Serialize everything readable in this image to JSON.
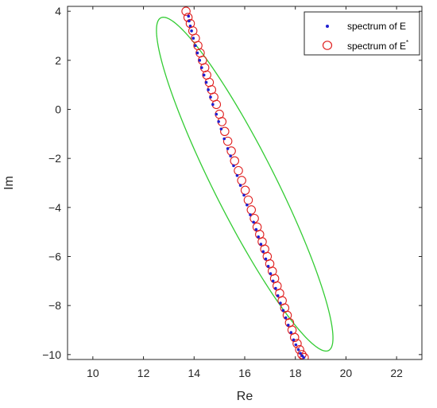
{
  "chart_data": {
    "type": "scatter",
    "xlabel": "Re",
    "ylabel": "Im",
    "xlim": [
      9,
      23
    ],
    "ylim": [
      -10.2,
      4.2
    ],
    "xticks": [
      10,
      12,
      14,
      16,
      18,
      20,
      22
    ],
    "yticks": [
      -10,
      -8,
      -6,
      -4,
      -2,
      0,
      2,
      4
    ],
    "grid": false,
    "legend_position": "top-right",
    "series": [
      {
        "name": "spectrum of E",
        "marker": "dot",
        "color": "#1f1fd0",
        "points": [
          [
            13.78,
            3.8
          ],
          [
            13.8,
            3.6
          ],
          [
            13.85,
            3.4
          ],
          [
            13.9,
            3.2
          ],
          [
            13.97,
            2.9
          ],
          [
            14.05,
            2.6
          ],
          [
            14.13,
            2.3
          ],
          [
            14.22,
            2.0
          ],
          [
            14.3,
            1.7
          ],
          [
            14.39,
            1.4
          ],
          [
            14.48,
            1.1
          ],
          [
            14.56,
            0.8
          ],
          [
            14.65,
            0.5
          ],
          [
            14.74,
            0.2
          ],
          [
            14.88,
            -0.2
          ],
          [
            14.97,
            -0.5
          ],
          [
            15.07,
            -0.8
          ],
          [
            15.19,
            -1.2
          ],
          [
            15.33,
            -1.6
          ],
          [
            15.44,
            -1.9
          ],
          [
            15.56,
            -2.3
          ],
          [
            15.7,
            -2.7
          ],
          [
            15.83,
            -3.1
          ],
          [
            15.97,
            -3.5
          ],
          [
            16.09,
            -3.9
          ],
          [
            16.22,
            -4.3
          ],
          [
            16.35,
            -4.6
          ],
          [
            16.45,
            -4.9
          ],
          [
            16.54,
            -5.2
          ],
          [
            16.64,
            -5.5
          ],
          [
            16.73,
            -5.8
          ],
          [
            16.83,
            -6.1
          ],
          [
            16.93,
            -6.4
          ],
          [
            17.02,
            -6.7
          ],
          [
            17.12,
            -7.0
          ],
          [
            17.22,
            -7.3
          ],
          [
            17.31,
            -7.6
          ],
          [
            17.41,
            -7.9
          ],
          [
            17.52,
            -8.2
          ],
          [
            17.62,
            -8.5
          ],
          [
            17.72,
            -8.8
          ],
          [
            17.83,
            -9.1
          ],
          [
            17.93,
            -9.4
          ],
          [
            18.02,
            -9.6
          ],
          [
            18.12,
            -9.8
          ],
          [
            18.2,
            -9.95
          ],
          [
            18.27,
            -10.05
          ],
          [
            18.33,
            -10.12
          ]
        ]
      },
      {
        "name": "spectrum of E",
        "name_superscript": "*",
        "marker": "circle",
        "color": "#e02020",
        "points": [
          [
            13.68,
            4.0
          ],
          [
            13.76,
            3.75
          ],
          [
            13.85,
            3.5
          ],
          [
            13.95,
            3.2
          ],
          [
            14.05,
            2.9
          ],
          [
            14.15,
            2.6
          ],
          [
            14.24,
            2.3
          ],
          [
            14.33,
            2.0
          ],
          [
            14.42,
            1.7
          ],
          [
            14.5,
            1.4
          ],
          [
            14.6,
            1.1
          ],
          [
            14.69,
            0.8
          ],
          [
            14.78,
            0.5
          ],
          [
            14.88,
            0.2
          ],
          [
            15.0,
            -0.2
          ],
          [
            15.1,
            -0.5
          ],
          [
            15.21,
            -0.9
          ],
          [
            15.33,
            -1.3
          ],
          [
            15.47,
            -1.7
          ],
          [
            15.6,
            -2.1
          ],
          [
            15.75,
            -2.5
          ],
          [
            15.88,
            -2.9
          ],
          [
            16.02,
            -3.3
          ],
          [
            16.14,
            -3.7
          ],
          [
            16.26,
            -4.1
          ],
          [
            16.38,
            -4.45
          ],
          [
            16.49,
            -4.8
          ],
          [
            16.59,
            -5.1
          ],
          [
            16.69,
            -5.4
          ],
          [
            16.79,
            -5.7
          ],
          [
            16.89,
            -6.0
          ],
          [
            16.99,
            -6.3
          ],
          [
            17.09,
            -6.6
          ],
          [
            17.18,
            -6.9
          ],
          [
            17.28,
            -7.2
          ],
          [
            17.38,
            -7.5
          ],
          [
            17.48,
            -7.8
          ],
          [
            17.58,
            -8.1
          ],
          [
            17.68,
            -8.4
          ],
          [
            17.77,
            -8.7
          ],
          [
            17.87,
            -9.0
          ],
          [
            17.97,
            -9.3
          ],
          [
            18.07,
            -9.55
          ],
          [
            18.17,
            -9.8
          ],
          [
            18.26,
            -10.0
          ],
          [
            18.35,
            -10.12
          ]
        ]
      }
    ],
    "ellipse": {
      "color": "#33cc33",
      "center": [
        16.0,
        -3.05
      ],
      "semi_major": 7.55,
      "semi_minor": 1.22,
      "angle_deg": -64
    }
  }
}
